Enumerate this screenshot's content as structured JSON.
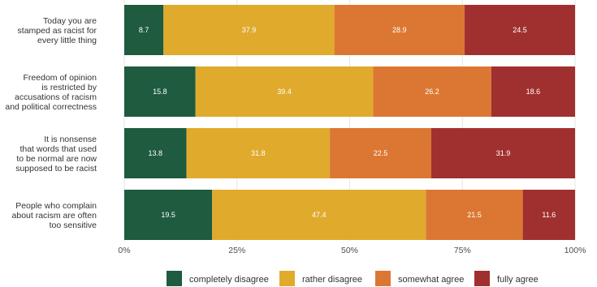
{
  "chart_data": {
    "type": "bar",
    "orientation": "horizontal",
    "stacked": true,
    "categories": [
      "Today you are stamped as racist for every little thing",
      "Freedom of opinion is restricted by accusations of racism and political correctness",
      "It is nonsense that words that used to be normal are now supposed to be racist",
      "People who complain about racism are often too sensitive"
    ],
    "category_lines": [
      [
        "Today you are",
        "stamped as racist for",
        "every little thing"
      ],
      [
        "Freedom of opinion",
        "is restricted by",
        "accusations of racism",
        "and political correctness"
      ],
      [
        "It is nonsense",
        "that words that used",
        "to be normal are now",
        "supposed to be racist"
      ],
      [
        "People who complain",
        "about racism are often",
        "too sensitive"
      ]
    ],
    "series": [
      {
        "name": "completely disagree",
        "color": "#1e5b3f",
        "values": [
          8.7,
          15.8,
          13.8,
          19.5
        ]
      },
      {
        "name": "rather disagree",
        "color": "#e0aa2d",
        "values": [
          37.9,
          39.4,
          31.8,
          47.4
        ]
      },
      {
        "name": "somewhat agree",
        "color": "#dc7733",
        "values": [
          28.9,
          26.2,
          22.5,
          21.5
        ]
      },
      {
        "name": "fully agree",
        "color": "#a0302f",
        "values": [
          24.5,
          18.6,
          31.9,
          11.6
        ]
      }
    ],
    "xlim": [
      0,
      100
    ],
    "x_ticks": [
      0,
      25,
      50,
      75,
      100
    ],
    "x_tick_labels": [
      "0%",
      "25%",
      "50%",
      "75%",
      "100%"
    ],
    "grid": true,
    "legend_position": "bottom",
    "title": "",
    "xlabel": "",
    "ylabel": ""
  }
}
